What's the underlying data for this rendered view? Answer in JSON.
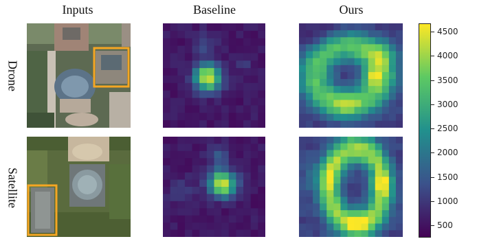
{
  "columns": [
    "Inputs",
    "Baseline",
    "Ours"
  ],
  "rows": [
    "Drone",
    "Satellite"
  ],
  "colorbar": {
    "ticks": [
      "4500",
      "4000",
      "3500",
      "3000",
      "2500",
      "2000",
      "1500",
      "1000",
      "500"
    ],
    "colors": [
      "#440154",
      "#3b528b",
      "#21908d",
      "#5dc963",
      "#fde725"
    ]
  },
  "highlight_color": "#f5a623"
}
